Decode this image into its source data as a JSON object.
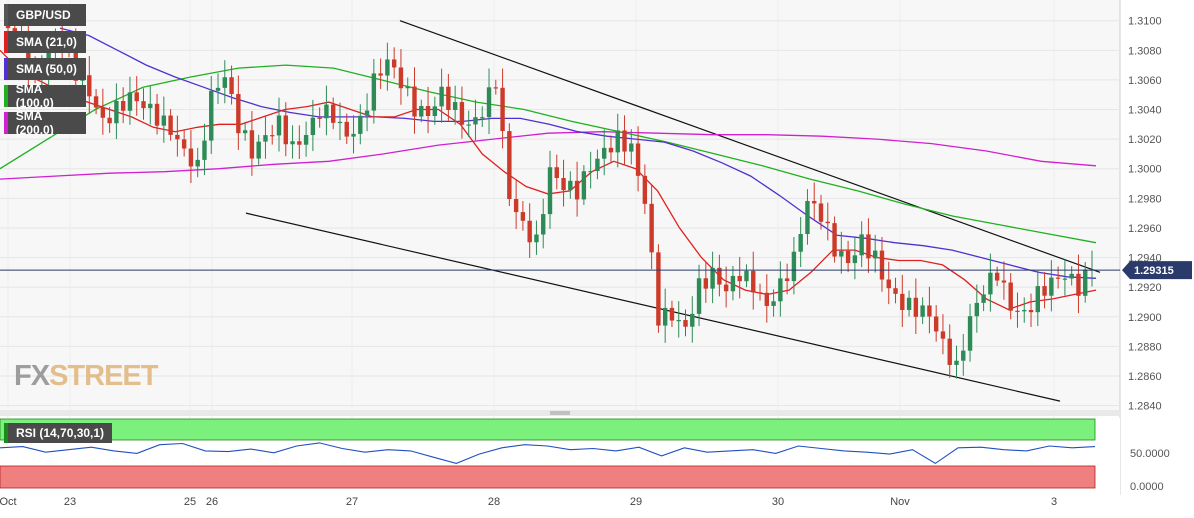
{
  "symbol": "GBP/USD",
  "logo": {
    "fx": "FX",
    "street": "STREET"
  },
  "current_price_label": "1.29315",
  "rsi_label": "RSI (14,70,30,1)",
  "rsi_levels": {
    "upper": "50.0000",
    "lower": "0.0000"
  },
  "colors": {
    "bull": "#2e8b57",
    "bear": "#cc3a2a",
    "sma21": "#e02020",
    "sma50": "#5030d0",
    "sma100": "#20b020",
    "sma200": "#d020d0",
    "rsi_line": "#2050c0",
    "rsi_overbought": "#7cf07c",
    "rsi_oversold": "#f08080"
  },
  "chart_data": {
    "type": "candlestick",
    "title": "GBP/USD",
    "y_ticks": [
      "1.3100",
      "1.3080",
      "1.3060",
      "1.3040",
      "1.3020",
      "1.3000",
      "1.2980",
      "1.2960",
      "1.2940",
      "1.2920",
      "1.2900",
      "1.2880",
      "1.2860",
      "1.2840"
    ],
    "ylim": [
      1.2837,
      1.3114
    ],
    "x_labels": [
      "Oct",
      "23",
      "25",
      "26",
      "27",
      "28",
      "29",
      "30",
      "Nov",
      "3"
    ],
    "indicators": [
      {
        "name": "SMA (21,0)",
        "color": "#e02020"
      },
      {
        "name": "SMA (50,0)",
        "color": "#5030d0"
      },
      {
        "name": "SMA (100,0)",
        "color": "#20b020"
      },
      {
        "name": "SMA (200,0)",
        "color": "#d020d0"
      }
    ],
    "current_price": 1.29315,
    "path": [
      1.3095,
      1.3085,
      1.306,
      1.3082,
      1.309,
      1.3065,
      1.305,
      1.303,
      1.304,
      1.305,
      1.3045,
      1.3035,
      1.3025,
      1.301,
      1.3,
      1.305,
      1.3065,
      1.303,
      1.301,
      1.302,
      1.303,
      1.3015,
      1.3025,
      1.304,
      1.3035,
      1.302,
      1.303,
      1.306,
      1.3075,
      1.306,
      1.304,
      1.3035,
      1.305,
      1.304,
      1.303,
      1.304,
      1.306,
      1.298,
      1.296,
      1.295,
      1.3,
      1.299,
      1.2985,
      1.3,
      1.301,
      1.302,
      1.3015,
      1.298,
      1.29,
      1.29,
      1.289,
      1.292,
      1.293,
      1.292,
      1.293,
      1.292,
      1.2905,
      1.292,
      1.294,
      1.298,
      1.297,
      1.2945,
      1.2935,
      1.295,
      1.294,
      1.292,
      1.291,
      1.2905,
      1.29,
      1.288,
      1.2865,
      1.29,
      1.292,
      1.293,
      1.2905,
      1.29,
      1.2915,
      1.2925,
      1.293,
      1.292,
      1.2932
    ],
    "sma21": [
      1.308,
      1.3065,
      1.3058,
      1.305,
      1.3045,
      1.304,
      1.3035,
      1.3028,
      1.3025,
      1.3028,
      1.303,
      1.303,
      1.3035,
      1.304,
      1.3042,
      1.3045,
      1.304,
      1.3035,
      1.3035,
      1.304,
      1.304,
      1.303,
      1.301,
      1.2998,
      1.2988,
      1.2983,
      1.2985,
      1.2998,
      1.3005,
      1.3,
      1.2985,
      1.296,
      1.294,
      1.2925,
      1.2918,
      1.2915,
      1.2918,
      1.293,
      1.2945,
      1.2945,
      1.294,
      1.2938,
      1.2938,
      1.2935,
      1.2925,
      1.2912,
      1.2905,
      1.291,
      1.2912,
      1.2915,
      1.2918
    ],
    "sma50": [
      1.3095,
      1.309,
      1.308,
      1.307,
      1.3062,
      1.3055,
      1.3048,
      1.3042,
      1.3038,
      1.3035,
      1.3035,
      1.3035,
      1.3034,
      1.3032,
      1.3032,
      1.3034,
      1.3034,
      1.303,
      1.3025,
      1.3022,
      1.302,
      1.3018,
      1.3012,
      1.3004,
      1.2995,
      1.2982,
      1.2968,
      1.2955,
      1.2953,
      1.295,
      1.2948,
      1.2945,
      1.294,
      1.2935,
      1.293,
      1.2927,
      1.2926
    ],
    "sma100": [
      1.3,
      1.302,
      1.304,
      1.3055,
      1.3062,
      1.3068,
      1.307,
      1.3068,
      1.306,
      1.3052,
      1.3045,
      1.304,
      1.3032,
      1.3025,
      1.3018,
      1.301,
      1.3002,
      1.2993,
      1.2985,
      1.2976,
      1.2968,
      1.2962,
      1.2956,
      1.295
    ],
    "sma200": [
      1.2993,
      1.2995,
      1.2997,
      1.2998,
      1.3,
      1.3003,
      1.3005,
      1.301,
      1.3016,
      1.302,
      1.3024,
      1.3025,
      1.3024,
      1.3023,
      1.3023,
      1.3022,
      1.302,
      1.3017,
      1.3012,
      1.3005,
      1.3002
    ],
    "channel_upper": [
      [
        1.31,
        0.0
      ],
      [
        1.293,
        1.0
      ]
    ],
    "channel_lower": [
      [
        1.297,
        0.0
      ],
      [
        1.2843,
        1.0
      ]
    ],
    "rsi": [
      55,
      57,
      48,
      52,
      56,
      50,
      46,
      60,
      62,
      50,
      49,
      53,
      47,
      58,
      63,
      54,
      48,
      52,
      50,
      40,
      30,
      45,
      55,
      60,
      58,
      52,
      54,
      50,
      56,
      42,
      55,
      48,
      50,
      52,
      46,
      58,
      54,
      50,
      48,
      45,
      52,
      30,
      55,
      56,
      52,
      50,
      58,
      55,
      57
    ]
  }
}
